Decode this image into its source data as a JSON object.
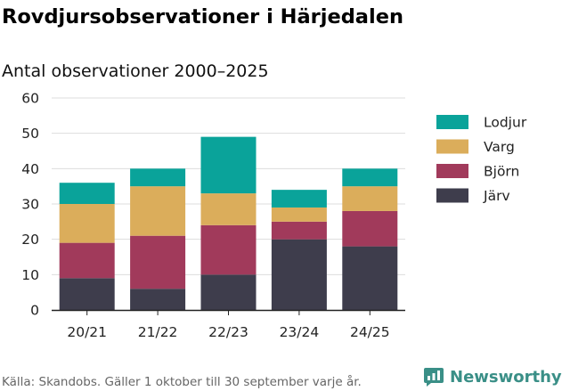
{
  "title": "Rovdjursobservationer i Härjedalen",
  "subtitle": "Antal observationer 2000–2025",
  "source": "Källa: Skandobs. Gäller 1 oktober till 30 september varje år.",
  "brand": {
    "name": "Newsworthy",
    "logo_icon": "bar-chart-logo-icon"
  },
  "colors": {
    "Lodjur": "#0aa39a",
    "Varg": "#dbad5b",
    "Björn": "#a13a5b",
    "Järv": "#3e3d4c",
    "brand": "#3a8f87"
  },
  "chart_data": {
    "type": "bar",
    "stacked": true,
    "title": "Rovdjursobservationer i Härjedalen",
    "subtitle": "Antal observationer 2000–2025",
    "categories": [
      "20/21",
      "21/22",
      "22/23",
      "23/24",
      "24/25"
    ],
    "series": [
      {
        "name": "Järv",
        "values": [
          9,
          6,
          10,
          20,
          18
        ]
      },
      {
        "name": "Björn",
        "values": [
          10,
          15,
          14,
          5,
          10
        ]
      },
      {
        "name": "Varg",
        "values": [
          11,
          14,
          9,
          4,
          7
        ]
      },
      {
        "name": "Lodjur",
        "values": [
          6,
          5,
          16,
          5,
          5
        ]
      }
    ],
    "legend": [
      "Lodjur",
      "Varg",
      "Björn",
      "Järv"
    ],
    "legend_position": "right",
    "ylim": [
      0,
      60
    ],
    "yticks": [
      0,
      10,
      20,
      30,
      40,
      50,
      60
    ],
    "grid": true,
    "xlabel": "",
    "ylabel": ""
  }
}
